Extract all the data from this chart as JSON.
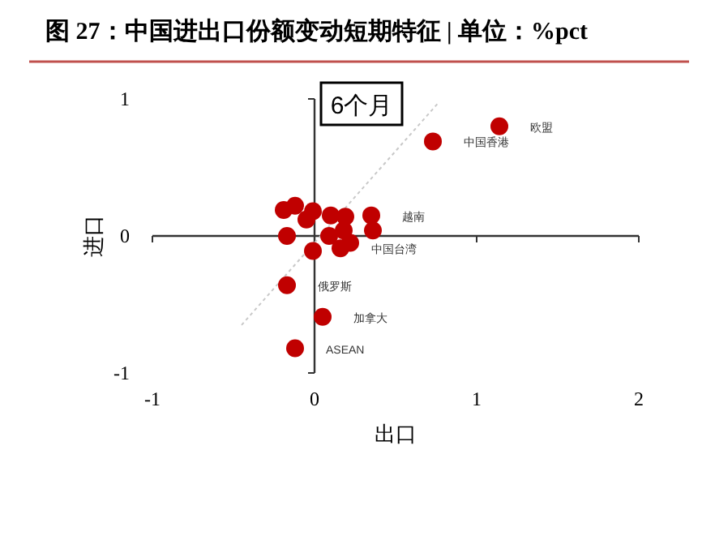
{
  "chart_data": {
    "type": "scatter",
    "title": "图 27：中国进出口份额变动短期特征 | 单位：%pct",
    "xlabel": "出口",
    "ylabel": "进口",
    "annotations": [
      "6个月",
      {
        "text": "欧盟",
        "x": 1.14,
        "y": 0.8
      },
      {
        "text": "中国香港",
        "x": 0.73,
        "y": 0.69
      },
      {
        "text": "越南",
        "x": 0.35,
        "y": 0.15
      },
      {
        "text": "中国台湾",
        "x": 0.16,
        "y": -0.09
      },
      {
        "text": "俄罗斯",
        "x": -0.17,
        "y": -0.36
      },
      {
        "text": "加拿大",
        "x": 0.05,
        "y": -0.59
      },
      {
        "text": "ASEAN",
        "x": -0.12,
        "y": -0.82
      }
    ],
    "series": [
      {
        "marker": "circle",
        "color": "#c00000",
        "x": [
          1.14,
          0.73,
          -0.19,
          -0.12,
          -0.05,
          -0.01,
          0.1,
          0.19,
          0.35,
          -0.17,
          -0.01,
          0.09,
          0.18,
          0.22,
          0.16,
          0.36,
          -0.17,
          0.05,
          -0.12
        ],
        "values": [
          0.8,
          0.69,
          0.19,
          0.22,
          0.12,
          0.18,
          0.15,
          0.14,
          0.15,
          0.0,
          -0.11,
          0.0,
          0.04,
          -0.05,
          -0.09,
          0.04,
          -0.36,
          -0.59,
          -0.82
        ]
      },
      {
        "type": "line",
        "line_style": "dotted",
        "color": "#c8c8c8",
        "x": [
          -0.45,
          0.77
        ],
        "values": [
          -0.65,
          0.98
        ]
      }
    ],
    "xlim": [
      -1,
      2
    ],
    "ylim": [
      -1,
      1
    ],
    "xticks": [
      -1,
      0,
      1,
      2
    ],
    "yticks": [
      -1,
      0,
      1
    ]
  }
}
